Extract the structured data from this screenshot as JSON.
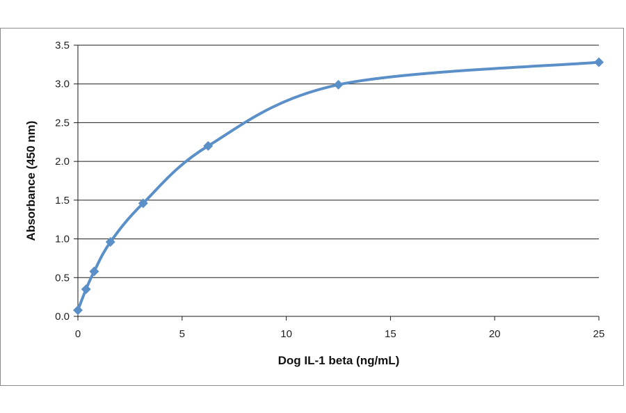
{
  "chart_data": {
    "type": "line",
    "title": "",
    "xlabel": "Dog IL-1 beta (ng/mL)",
    "ylabel": "Absorbance  (450 nm)",
    "xlim": [
      0,
      25
    ],
    "ylim": [
      0,
      3.5
    ],
    "x_ticks": [
      "0",
      "5",
      "10",
      "15",
      "20",
      "25"
    ],
    "y_ticks": [
      "0.0",
      "0.5",
      "1.0",
      "1.5",
      "2.0",
      "2.5",
      "3.0",
      "3.5"
    ],
    "grid": "horizontal",
    "legend": "none",
    "line_color": "#5b8fc7",
    "marker": "diamond",
    "series": [
      {
        "x": [
          0,
          0.39,
          0.78,
          1.56,
          3.13,
          6.25,
          12.5,
          25
        ],
        "values": [
          0.08,
          0.35,
          0.58,
          0.96,
          1.46,
          2.2,
          2.99,
          3.28
        ]
      }
    ]
  }
}
